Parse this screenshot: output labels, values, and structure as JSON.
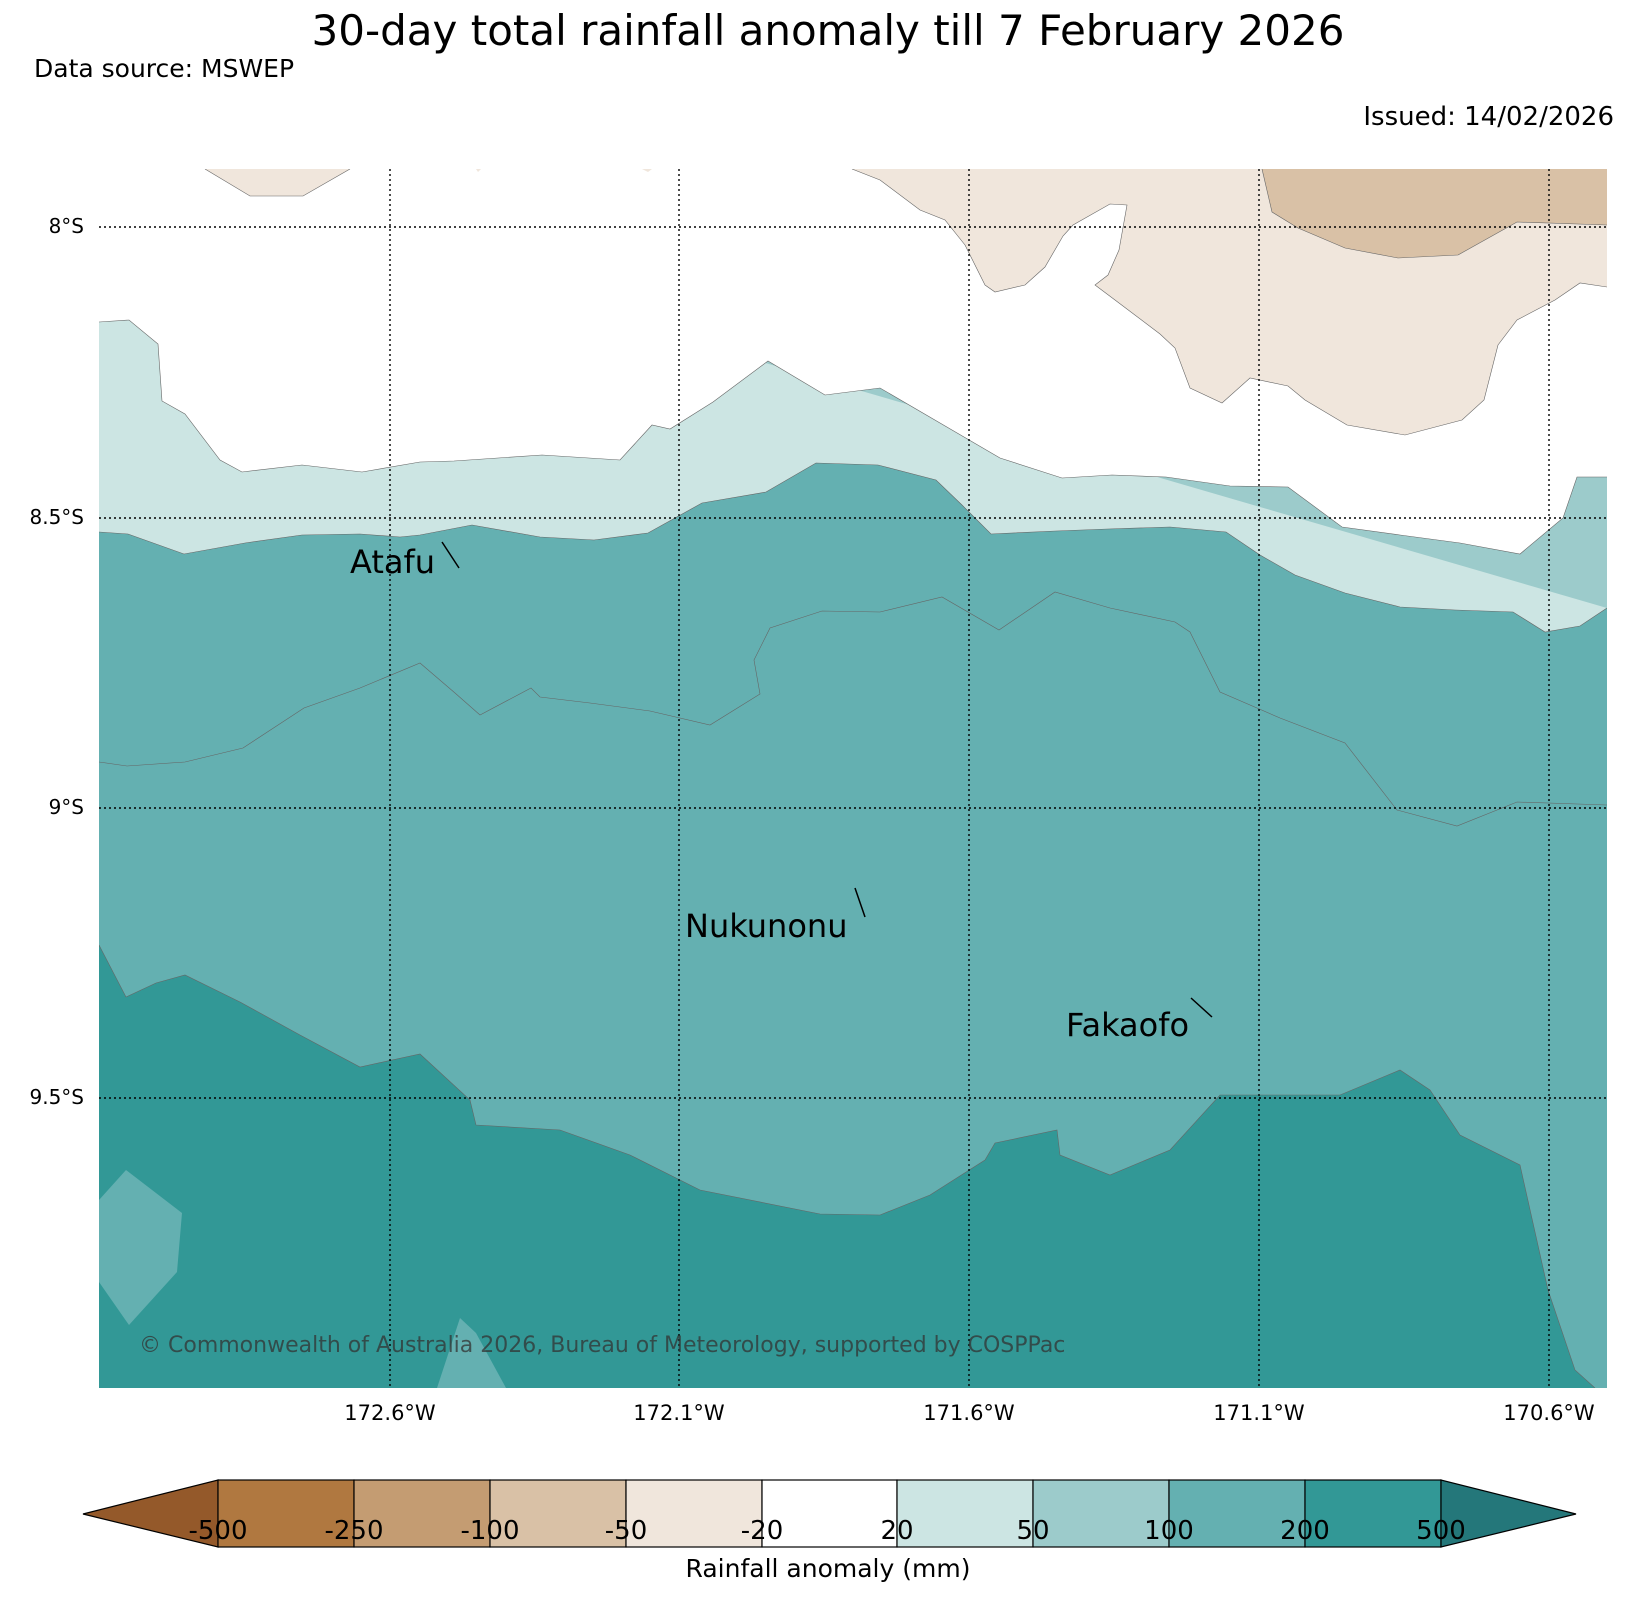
{
  "title": "30-day total rainfall anomaly till 7 February 2026",
  "data_source": "Data source: MSWEP",
  "issued": "Issued: 14/02/2026",
  "map": {
    "lat_labels": [
      "8°S",
      "8.5°S",
      "9°S",
      "9.5°S"
    ],
    "lon_labels": [
      "172.6°W",
      "172.1°W",
      "171.6°W",
      "171.1°W",
      "170.6°W"
    ],
    "places": [
      {
        "name": "Atafu"
      },
      {
        "name": "Nukunonu"
      },
      {
        "name": "Fakaofo"
      }
    ],
    "copyright": "© Commonwealth of Australia 2026, Bureau of Meteorology, supported by COSPPac"
  },
  "colorbar": {
    "label": "Rainfall anomaly (mm)",
    "ticks": [
      "-500",
      "-250",
      "-100",
      "-50",
      "-20",
      "20",
      "50",
      "100",
      "200",
      "500"
    ],
    "colors": [
      "#94592a",
      "#b07840",
      "#c49c72",
      "#d9c1a6",
      "#f0e6dc",
      "#ffffff",
      "#cce5e3",
      "#9ccbcb",
      "#64b0b1",
      "#329896",
      "#24777a"
    ]
  }
}
